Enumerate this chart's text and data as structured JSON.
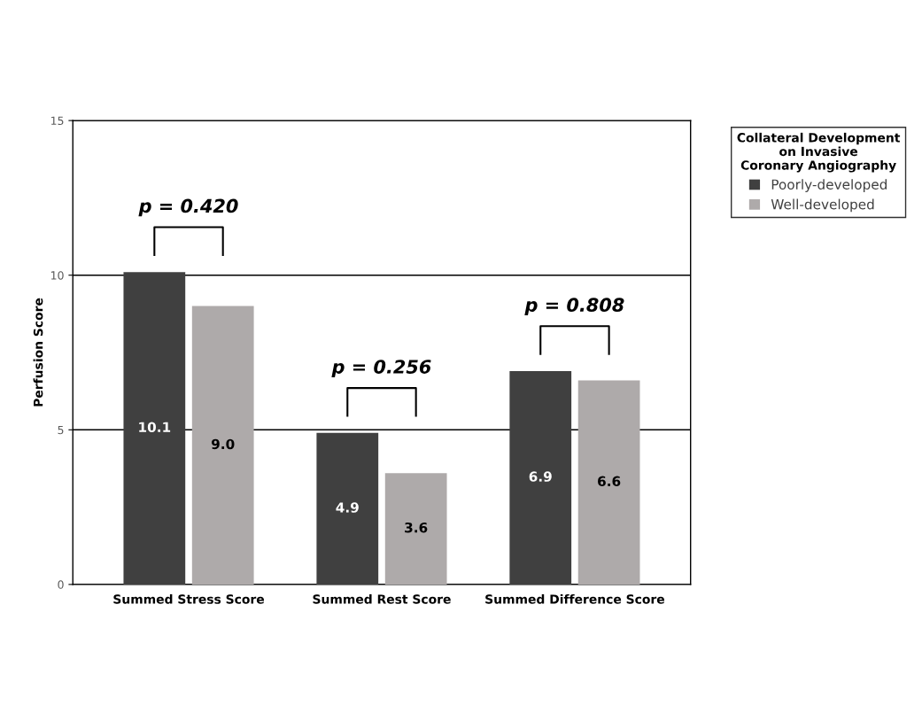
{
  "chart_data": {
    "type": "bar",
    "ylabel": "Perfusion Score",
    "legend_title": "Collateral Development on Invasive Coronary Angiography",
    "categories": [
      "Summed Stress Score",
      "Summed Rest Score",
      "Summed Difference Score"
    ],
    "series": [
      {
        "name": "Poorly-developed",
        "color": "#404040",
        "values": [
          10.1,
          4.9,
          6.9
        ],
        "value_labels": [
          "10.1",
          "4.9",
          "6.9"
        ]
      },
      {
        "name": "Well-developed",
        "color": "#aeaaaa",
        "values": [
          9.0,
          3.6,
          6.6
        ],
        "value_labels": [
          "9.0",
          "3.6",
          "6.6"
        ]
      }
    ],
    "ylim": [
      0,
      15
    ],
    "yticks": [
      0,
      5,
      10,
      15
    ],
    "grid": "y",
    "legend": "right",
    "annotations": [
      "p = 0.420",
      "p = 0.256",
      "p = 0.808"
    ]
  }
}
